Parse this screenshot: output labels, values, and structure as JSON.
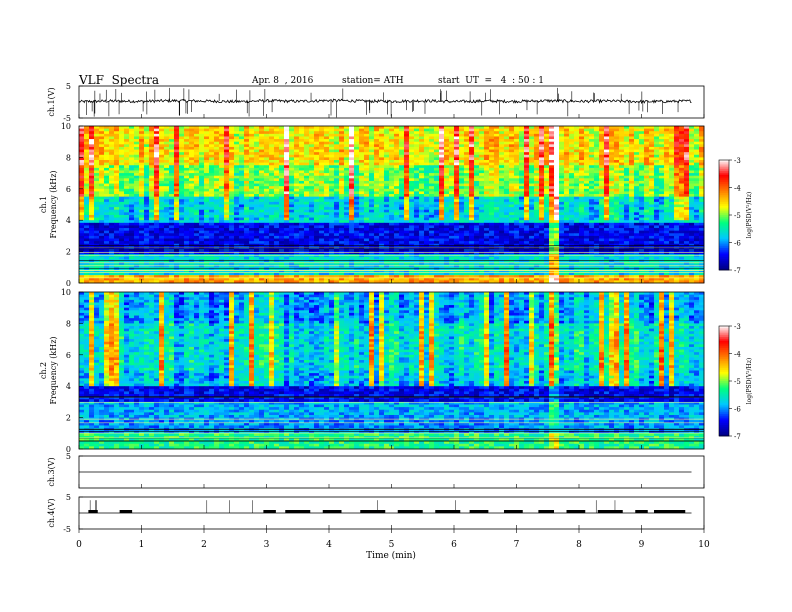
{
  "header": {
    "title": "VLF  Spectra",
    "date": "Apr. 8  , 2016",
    "station": "station= ATH",
    "start": "start  UT  =   4  : 50 : 1"
  },
  "chart_data": [
    {
      "type": "line",
      "panel": "ch1-waveform",
      "ylabel": "ch.1(V)",
      "ylim": [
        -5,
        5
      ],
      "yticks": [
        "5",
        "-5"
      ],
      "x": [
        0,
        0.5,
        1,
        1.5,
        2,
        2.5,
        3,
        3.5,
        4,
        4.5,
        5,
        5.5,
        6,
        6.5,
        7,
        7.5,
        8,
        8.5,
        9,
        9.5,
        9.8
      ],
      "values": [
        0.1,
        0.3,
        0.2,
        0.4,
        0.3,
        0.1,
        0.4,
        0.2,
        0.5,
        0.3,
        0.2,
        0.4,
        0.1,
        0.3,
        0.2,
        0.4,
        0.2,
        0.3,
        0.1,
        0.2,
        0.3
      ]
    },
    {
      "type": "heatmap",
      "panel": "ch1-spectrogram",
      "ylabel": "ch.1\nFrequency  (kHz)",
      "ylim": [
        0,
        10
      ],
      "yticks": [
        "0",
        "2",
        "4",
        "6",
        "8",
        "10"
      ],
      "xlim": [
        0,
        10
      ],
      "colorbar": {
        "label": "log(PSD(V²/Hz)",
        "range": [
          -7,
          -3
        ],
        "ticks": [
          "-3",
          "-4",
          "-5",
          "-6",
          "-7"
        ]
      },
      "bands": [
        {
          "from": 0.0,
          "to": 0.5,
          "log_psd": -4.3
        },
        {
          "from": 0.5,
          "to": 1.8,
          "log_psd": -5.7
        },
        {
          "from": 1.8,
          "to": 3.8,
          "log_psd": -6.5
        },
        {
          "from": 3.8,
          "to": 5.5,
          "log_psd": -5.7
        },
        {
          "from": 5.5,
          "to": 7.5,
          "log_psd": -5.0
        },
        {
          "from": 7.5,
          "to": 10.0,
          "log_psd": -4.6
        }
      ]
    },
    {
      "type": "heatmap",
      "panel": "ch2-spectrogram",
      "ylabel": "ch.2\nFrequency  (kHz)",
      "ylim": [
        0,
        10
      ],
      "yticks": [
        "0",
        "2",
        "4",
        "6",
        "8",
        "10"
      ],
      "xlim": [
        0,
        10
      ],
      "colorbar": {
        "label": "log(PSD(V²/Hz)",
        "range": [
          -7,
          -3
        ],
        "ticks": [
          "-3",
          "-4",
          "-5",
          "-6",
          "-7"
        ]
      },
      "bands": [
        {
          "from": 0.0,
          "to": 1.0,
          "log_psd": -5.3
        },
        {
          "from": 1.0,
          "to": 2.0,
          "log_psd": -6.0
        },
        {
          "from": 2.0,
          "to": 3.0,
          "log_psd": -5.9
        },
        {
          "from": 3.0,
          "to": 4.0,
          "log_psd": -6.5
        },
        {
          "from": 4.0,
          "to": 5.0,
          "log_psd": -5.8
        },
        {
          "from": 5.0,
          "to": 8.0,
          "log_psd": -5.6
        },
        {
          "from": 8.0,
          "to": 10.0,
          "log_psd": -5.9
        }
      ]
    },
    {
      "type": "line",
      "panel": "ch3-waveform",
      "ylabel": "ch.3(V)",
      "ylim": [
        -5,
        5
      ],
      "yticks": [
        "5"
      ],
      "x": [
        0,
        9.8
      ],
      "values": [
        0,
        0
      ]
    },
    {
      "type": "line",
      "panel": "ch4-waveform",
      "ylabel": "ch.4(V)",
      "ylim": [
        -5,
        5
      ],
      "yticks": [
        "5",
        "-5"
      ],
      "x": [
        0,
        9.8
      ],
      "values": [
        0,
        0
      ],
      "pulse_intervals": [
        [
          0.15,
          0.3
        ],
        [
          0.65,
          0.85
        ],
        [
          2.95,
          3.15
        ],
        [
          3.3,
          3.7
        ],
        [
          3.9,
          4.2
        ],
        [
          4.5,
          4.9
        ],
        [
          5.1,
          5.5
        ],
        [
          5.7,
          6.1
        ],
        [
          6.25,
          6.55
        ],
        [
          6.8,
          7.1
        ],
        [
          7.35,
          7.6
        ],
        [
          7.8,
          8.1
        ],
        [
          8.3,
          8.7
        ],
        [
          8.9,
          9.1
        ],
        [
          9.2,
          9.7
        ]
      ]
    }
  ],
  "x_axis": {
    "label": "Time  (min)",
    "ticks": [
      "0",
      "1",
      "2",
      "3",
      "4",
      "5",
      "6",
      "7",
      "8",
      "9",
      "10"
    ],
    "xlim": [
      0,
      10
    ]
  },
  "colors": {
    "colormap": [
      "#000080",
      "#0000ff",
      "#00c8ff",
      "#00ff80",
      "#ffff00",
      "#ff8000",
      "#ff0000",
      "#ffffff"
    ],
    "line": "#000000"
  }
}
